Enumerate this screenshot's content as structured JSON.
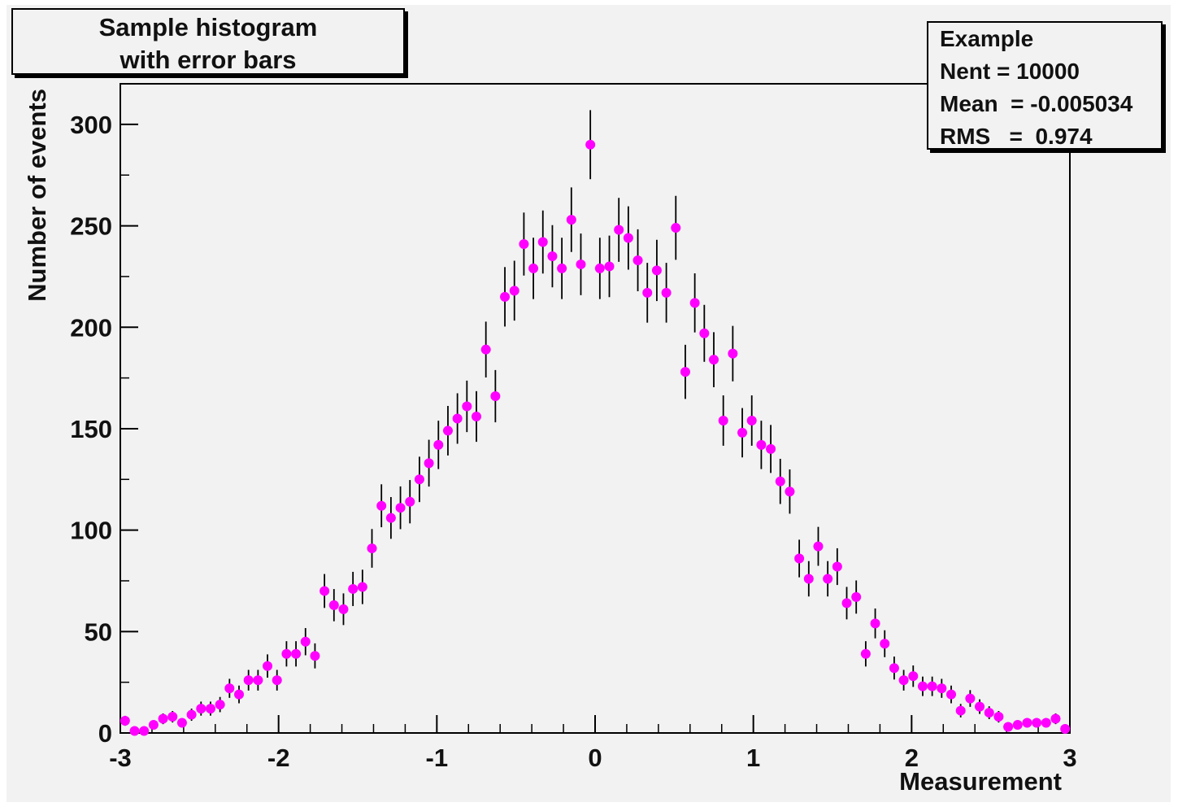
{
  "title": {
    "line1": "Sample histogram",
    "line2": "with error bars"
  },
  "stats": {
    "name": "Example",
    "nent": "Nent = 10000",
    "mean": "Mean  = -0.005034",
    "rms": "RMS   =  0.974"
  },
  "colors": {
    "marker": "#ff00ff",
    "error_bar": "#000000",
    "frame": "#000000",
    "background": "#f2f2f2"
  },
  "chart_data": {
    "type": "scatter",
    "title": "Sample histogram with error bars",
    "xlabel": "Measurement",
    "ylabel": "Number of events",
    "xlim": [
      -3,
      3
    ],
    "ylim": [
      0,
      320
    ],
    "grid": false,
    "x_ticks": [
      -3,
      -2,
      -1,
      0,
      1,
      2,
      3
    ],
    "y_ticks": [
      0,
      50,
      100,
      150,
      200,
      250,
      300
    ],
    "bins": 100,
    "error_bars": "sqrt(N)",
    "series": [
      {
        "marker": "circle",
        "x": [
          -2.97,
          -2.91,
          -2.85,
          -2.79,
          -2.73,
          -2.67,
          -2.61,
          -2.55,
          -2.49,
          -2.43,
          -2.37,
          -2.31,
          -2.25,
          -2.19,
          -2.13,
          -2.07,
          -2.01,
          -1.95,
          -1.89,
          -1.83,
          -1.77,
          -1.71,
          -1.65,
          -1.59,
          -1.53,
          -1.47,
          -1.41,
          -1.35,
          -1.29,
          -1.23,
          -1.17,
          -1.11,
          -1.05,
          -0.99,
          -0.93,
          -0.87,
          -0.81,
          -0.75,
          -0.69,
          -0.63,
          -0.57,
          -0.51,
          -0.45,
          -0.39,
          -0.33,
          -0.27,
          -0.21,
          -0.15,
          -0.09,
          -0.03,
          0.03,
          0.09,
          0.15,
          0.21,
          0.27,
          0.33,
          0.39,
          0.45,
          0.51,
          0.57,
          0.63,
          0.69,
          0.75,
          0.81,
          0.87,
          0.93,
          0.99,
          1.05,
          1.11,
          1.17,
          1.23,
          1.29,
          1.35,
          1.41,
          1.47,
          1.53,
          1.59,
          1.65,
          1.71,
          1.77,
          1.83,
          1.89,
          1.95,
          2.01,
          2.07,
          2.13,
          2.19,
          2.25,
          2.31,
          2.37,
          2.43,
          2.49,
          2.55,
          2.61,
          2.67,
          2.73,
          2.79,
          2.85,
          2.91,
          2.97
        ],
        "y": [
          6,
          1,
          1,
          4,
          7,
          8,
          5,
          9,
          12,
          12,
          14,
          22,
          19,
          26,
          26,
          33,
          26,
          39,
          39,
          45,
          38,
          70,
          63,
          61,
          71,
          72,
          91,
          112,
          106,
          111,
          114,
          125,
          133,
          142,
          149,
          155,
          161,
          156,
          189,
          166,
          215,
          218,
          241,
          229,
          242,
          235,
          229,
          253,
          231,
          290,
          229,
          230,
          248,
          244,
          233,
          217,
          228,
          217,
          249,
          178,
          212,
          197,
          184,
          154,
          187,
          148,
          154,
          142,
          140,
          124,
          119,
          86,
          76,
          92,
          76,
          82,
          64,
          67,
          39,
          54,
          44,
          32,
          26,
          28,
          23,
          23,
          22,
          19,
          11,
          17,
          13,
          10,
          8,
          3,
          4,
          5,
          5,
          5,
          7,
          2
        ]
      }
    ]
  }
}
